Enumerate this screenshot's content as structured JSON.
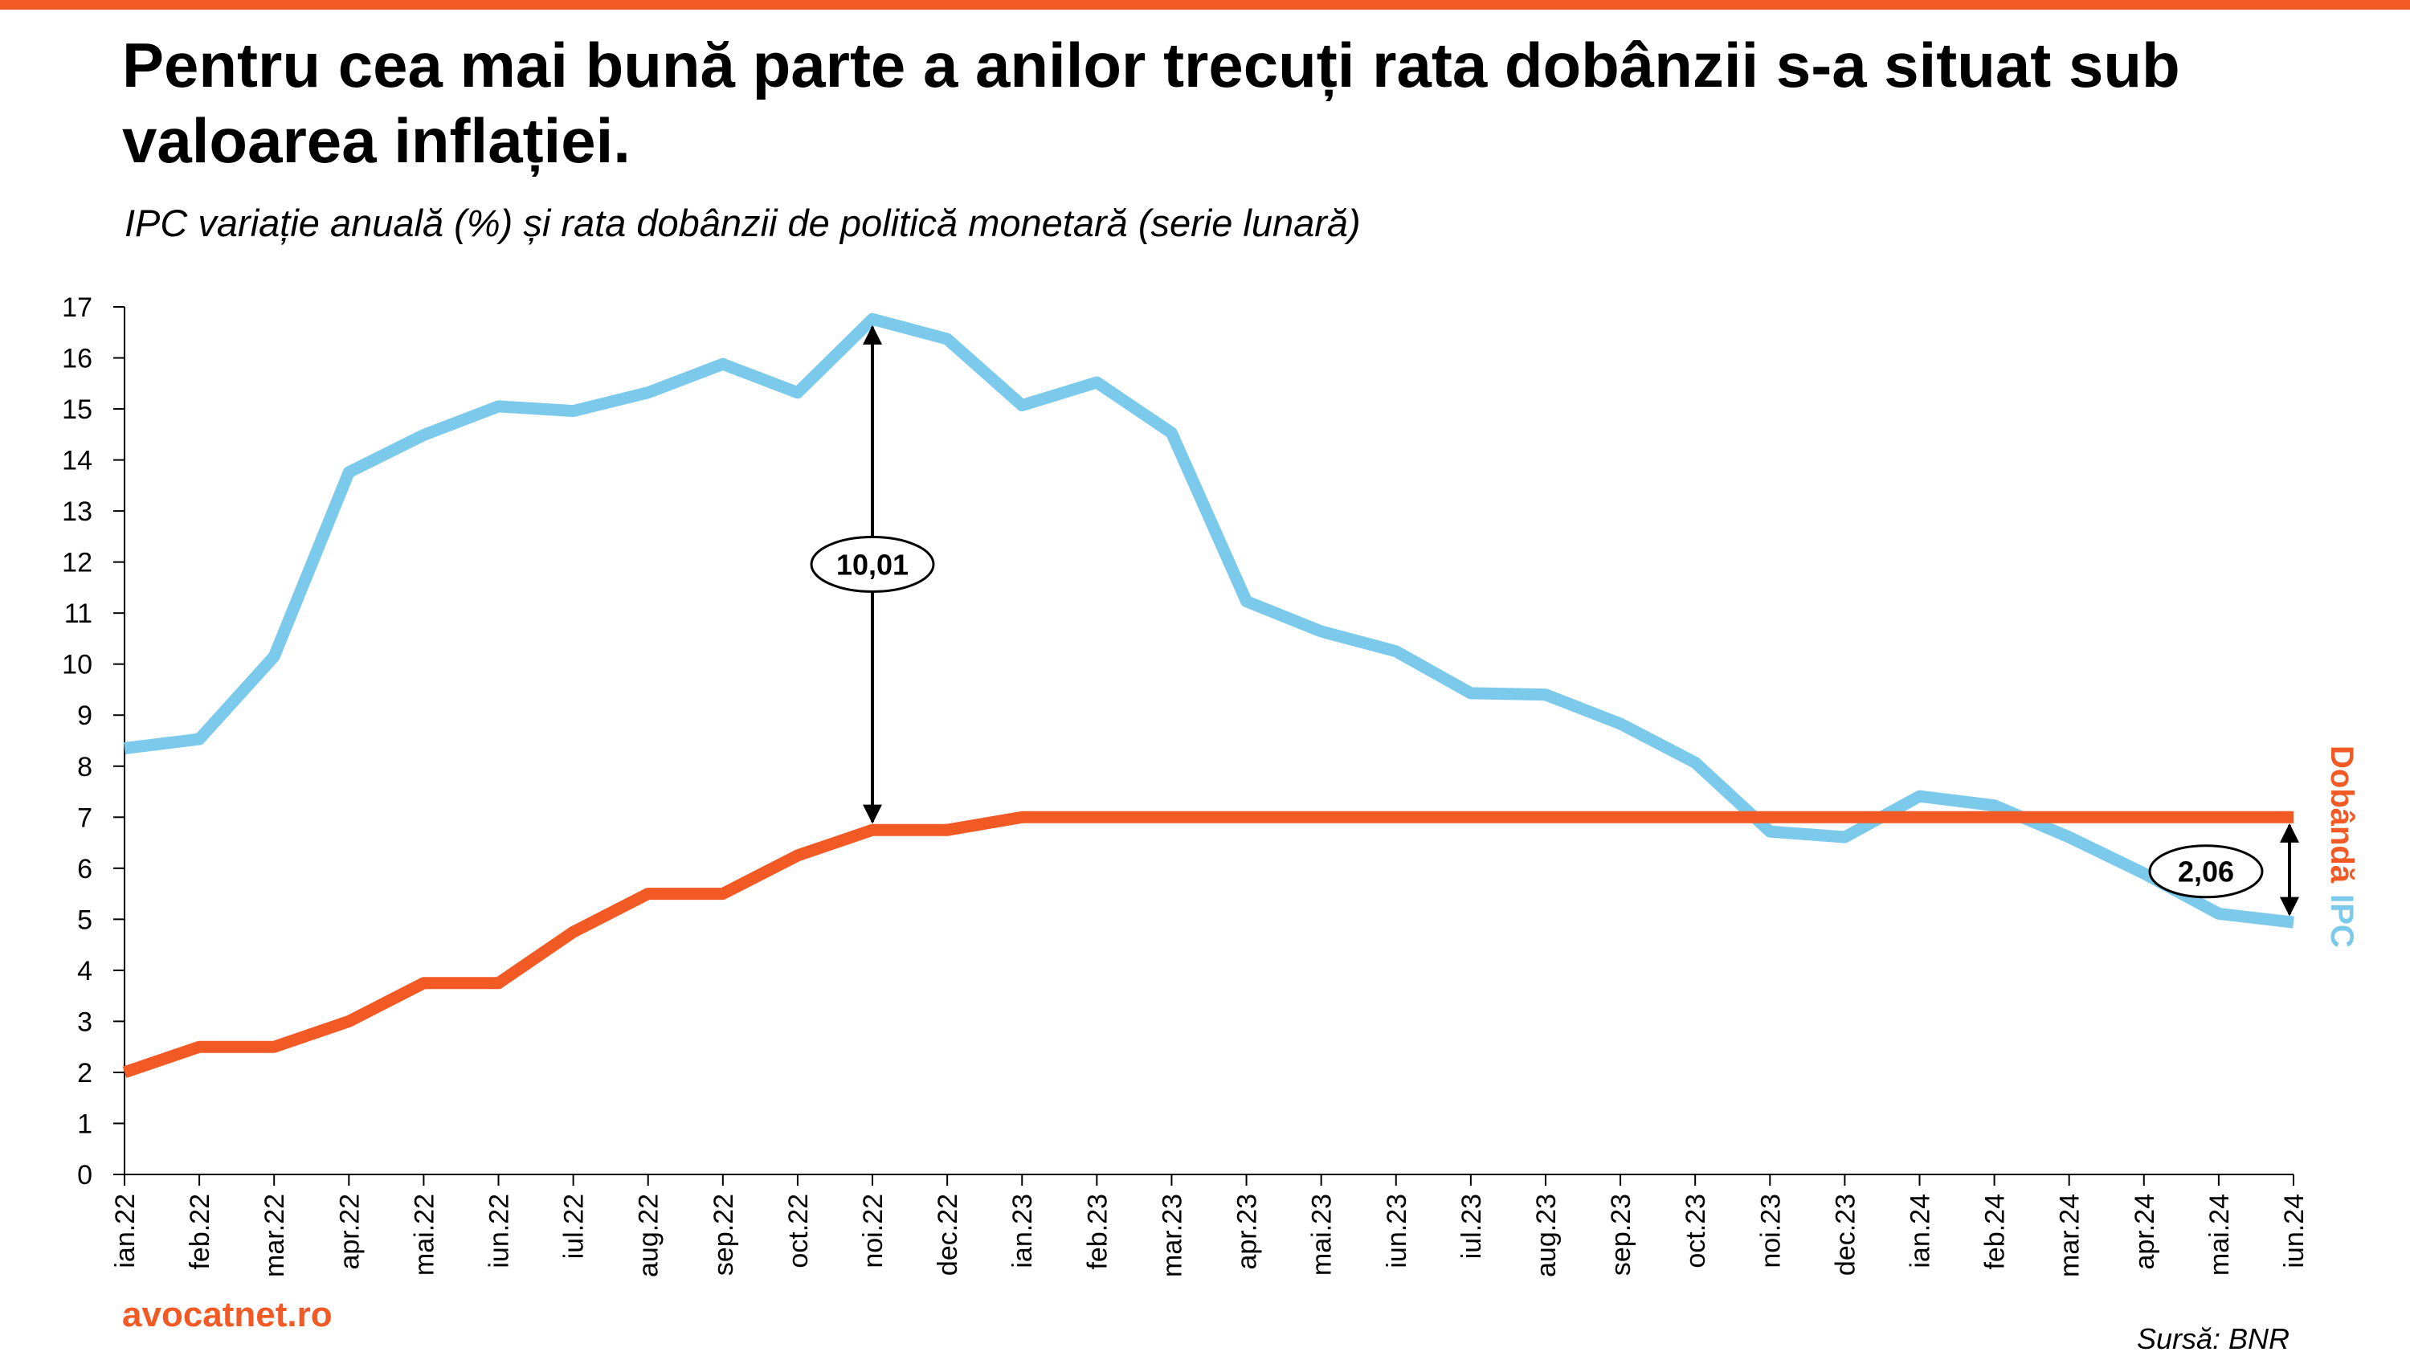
{
  "header": {
    "title": "Pentru cea mai bună parte a anilor trecuți rata dobânzii s-a situat sub valoarea inflației.",
    "subtitle": "IPC variație anuală (%) și  rata dobânzii de politică monetară (serie lunară)"
  },
  "footer": {
    "brand": "avocatnet.ro",
    "source": "Sursă: BNR"
  },
  "colors": {
    "accent": "#f15a24",
    "ipc": "#7ccaeb",
    "dobanda": "#f15a24"
  },
  "chart_data": {
    "type": "line",
    "categories": [
      "ian.22",
      "feb.22",
      "mar.22",
      "apr.22",
      "mai.22",
      "iun.22",
      "iul.22",
      "aug.22",
      "sep.22",
      "oct.22",
      "noi.22",
      "dec.22",
      "ian.23",
      "feb.23",
      "mar.23",
      "apr.23",
      "mai.23",
      "iun.23",
      "iul.23",
      "aug.23",
      "sep.23",
      "oct.23",
      "noi.23",
      "dec.23",
      "ian.24",
      "feb.24",
      "mar.24",
      "apr.24",
      "mai.24",
      "iun.24"
    ],
    "series": [
      {
        "name": "IPC",
        "values": [
          8.35,
          8.53,
          10.15,
          13.76,
          14.49,
          15.05,
          14.96,
          15.32,
          15.88,
          15.32,
          16.76,
          16.37,
          15.07,
          15.52,
          14.53,
          11.23,
          10.64,
          10.25,
          9.43,
          9.4,
          8.83,
          8.07,
          6.72,
          6.61,
          7.41,
          7.23,
          6.61,
          5.9,
          5.11,
          4.94
        ]
      },
      {
        "name": "Dobândă",
        "values": [
          2.0,
          2.5,
          2.5,
          3.0,
          3.75,
          3.75,
          4.75,
          5.5,
          5.5,
          6.25,
          6.75,
          6.75,
          7.0,
          7.0,
          7.0,
          7.0,
          7.0,
          7.0,
          7.0,
          7.0,
          7.0,
          7.0,
          7.0,
          7.0,
          7.0,
          7.0,
          7.0,
          7.0,
          7.0,
          7.0
        ]
      }
    ],
    "ylim": [
      0,
      17
    ],
    "yticks": [
      0,
      1,
      2,
      3,
      4,
      5,
      6,
      7,
      8,
      9,
      10,
      11,
      12,
      13,
      14,
      15,
      16,
      17
    ],
    "grid": false,
    "legend": {
      "dobanda_label": "Dobândă",
      "ipc_label": "IPC",
      "placement": "right, vertical"
    },
    "annotations": [
      {
        "label": "10,01",
        "category": "noi.22",
        "from": 6.75,
        "to": 16.76
      },
      {
        "label": "2,06",
        "category": "iun.24",
        "from": 4.94,
        "to": 7.0
      }
    ]
  }
}
